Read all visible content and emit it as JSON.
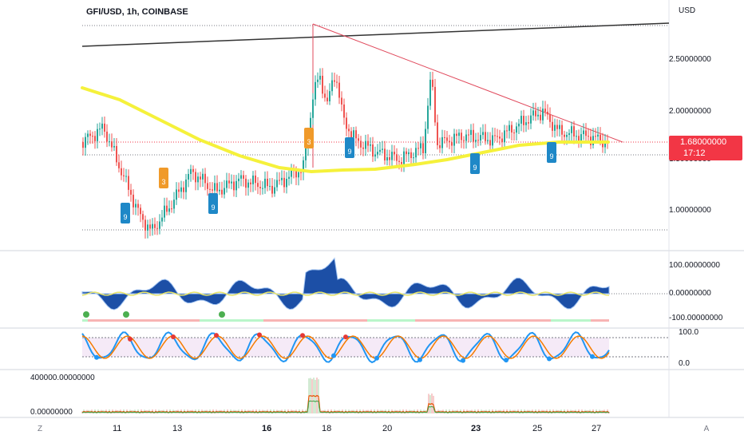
{
  "header": {
    "symbol_title": "GFI/USD, 1h, COINBASE",
    "currency": "USD"
  },
  "price_axis": {
    "labels": [
      "2.50000000",
      "2.00000000",
      "1.50000000",
      "1.00000000"
    ],
    "last_price": "1.68000000",
    "countdown": "17:12",
    "last_price_color": "#f23645"
  },
  "indicator_axes": {
    "momentum": [
      "100.00000000",
      "0.00000000",
      "-100.00000000"
    ],
    "stochastic": [
      "100.0",
      "0.0"
    ],
    "volume": [
      "400000.00000000",
      "0.00000000"
    ]
  },
  "time_axis": {
    "labels": [
      {
        "text": "11",
        "bold": false
      },
      {
        "text": "13",
        "bold": false
      },
      {
        "text": "16",
        "bold": true
      },
      {
        "text": "18",
        "bold": false
      },
      {
        "text": "20",
        "bold": false
      },
      {
        "text": "23",
        "bold": true
      },
      {
        "text": "25",
        "bold": false
      },
      {
        "text": "27",
        "bold": false
      }
    ]
  },
  "corner_buttons": {
    "left": "Z",
    "right": "A"
  },
  "colors": {
    "up": "#26a69a",
    "down": "#ef5350",
    "ma": "#f5f13b",
    "trendline": "#e0485b",
    "momentum_fill": "#1c4fa6",
    "stoch_k": "#2196f3",
    "stoch_d": "#f57c00"
  },
  "icons": [
    "sequential-9-marker-icon",
    "sequential-3-marker-icon"
  ],
  "markers": {
    "blue_nine": "9",
    "orange_three": "3"
  }
}
